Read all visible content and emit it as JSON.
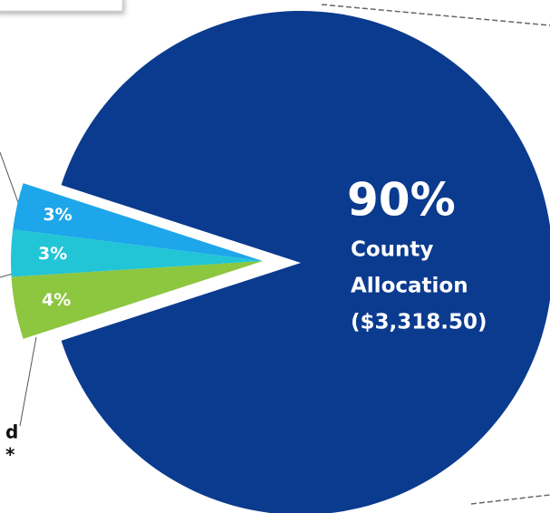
{
  "chart_data": {
    "type": "pie",
    "values": [
      90,
      3,
      3,
      4
    ],
    "value_labels": [
      "90%",
      "3%",
      "3%",
      "4%"
    ],
    "categories": [
      [
        "County",
        "Allocation",
        "($3,318.50)"
      ],
      null,
      null,
      null
    ],
    "colors": [
      "#0b3b8f",
      "#1ea6ea",
      "#21c5d6",
      "#8dc63f"
    ],
    "annotations": [
      "d",
      "*"
    ]
  }
}
